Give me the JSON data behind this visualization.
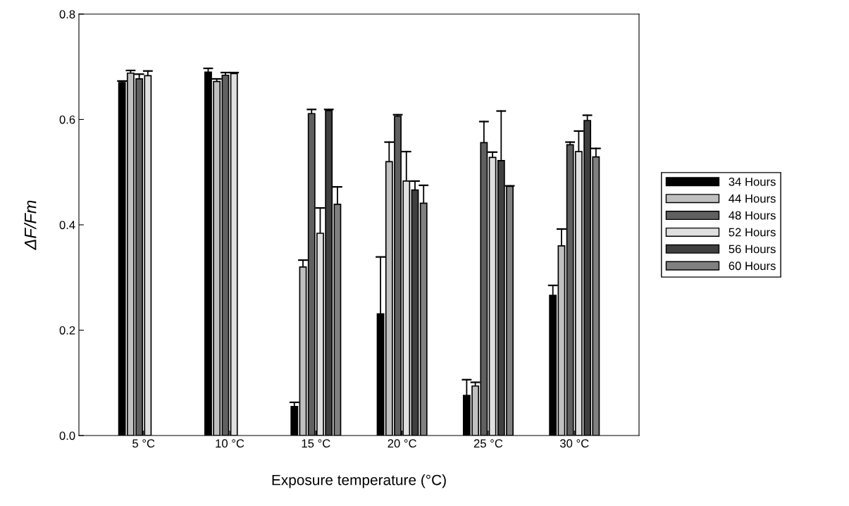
{
  "chart_data": {
    "type": "bar",
    "xlabel": "Exposure temperature (°C)",
    "ylabel": "ΔF/Fm",
    "categories": [
      "5 °C",
      "10 °C",
      "15 °C",
      "20 °C",
      "25 °C",
      "30 °C"
    ],
    "ylim": [
      0,
      0.8
    ],
    "yticks": [
      {
        "value": 0,
        "label": "0.0"
      },
      0.2,
      0.4,
      0.6,
      0.8
    ],
    "grid": false,
    "legend": "right",
    "series": [
      {
        "name": "34 Hours",
        "color": "#000000",
        "values": [
          0.67,
          0.69,
          0.055,
          0.231,
          0.076,
          0.266
        ],
        "errors": [
          [
            0.67,
            0.673
          ],
          [
            0.69,
            0.697
          ],
          [
            0.055,
            0.063
          ],
          [
            0.231,
            0.339
          ],
          [
            0.076,
            0.106
          ],
          [
            0.266,
            0.285
          ]
        ]
      },
      {
        "name": "44 Hours",
        "color": "#c0c0c0",
        "values": [
          0.688,
          0.672,
          0.32,
          0.52,
          0.094,
          0.36
        ],
        "errors": [
          [
            0.688,
            0.693
          ],
          [
            0.672,
            0.677
          ],
          [
            0.32,
            0.333
          ],
          [
            0.52,
            0.557
          ],
          [
            0.094,
            0.101
          ],
          [
            0.36,
            0.392
          ]
        ]
      },
      {
        "name": "48 Hours",
        "color": "#606060",
        "values": [
          0.677,
          0.684,
          0.611,
          0.606,
          0.556,
          0.552
        ],
        "errors": [
          [
            0.677,
            0.686
          ],
          [
            0.684,
            0.689
          ],
          [
            0.611,
            0.619
          ],
          [
            0.606,
            0.609
          ],
          [
            0.556,
            0.596
          ],
          [
            0.552,
            0.557
          ]
        ]
      },
      {
        "name": "52 Hours",
        "color": "#e0e0e0",
        "values": [
          0.683,
          0.687,
          0.384,
          0.483,
          0.528,
          0.539
        ],
        "errors": [
          [
            0.683,
            0.692
          ],
          [
            0.687,
            0.689
          ],
          [
            0.384,
            0.432
          ],
          [
            0.483,
            0.539
          ],
          [
            0.528,
            0.538
          ],
          [
            0.539,
            0.578
          ]
        ]
      },
      {
        "name": "56 Hours",
        "color": "#404040",
        "values": [
          null,
          null,
          0.617,
          0.466,
          0.522,
          0.598
        ],
        "errors": [
          null,
          null,
          [
            0.617,
            0.619
          ],
          [
            0.466,
            0.483
          ],
          [
            0.522,
            0.616
          ],
          [
            0.598,
            0.608
          ]
        ]
      },
      {
        "name": "60 Hours",
        "color": "#808080",
        "values": [
          null,
          null,
          0.439,
          0.441,
          0.473,
          0.529
        ],
        "errors": [
          null,
          null,
          [
            0.439,
            0.472
          ],
          [
            0.441,
            0.475
          ],
          [
            0.473,
            0.474
          ],
          [
            0.529,
            0.545
          ]
        ]
      }
    ]
  }
}
